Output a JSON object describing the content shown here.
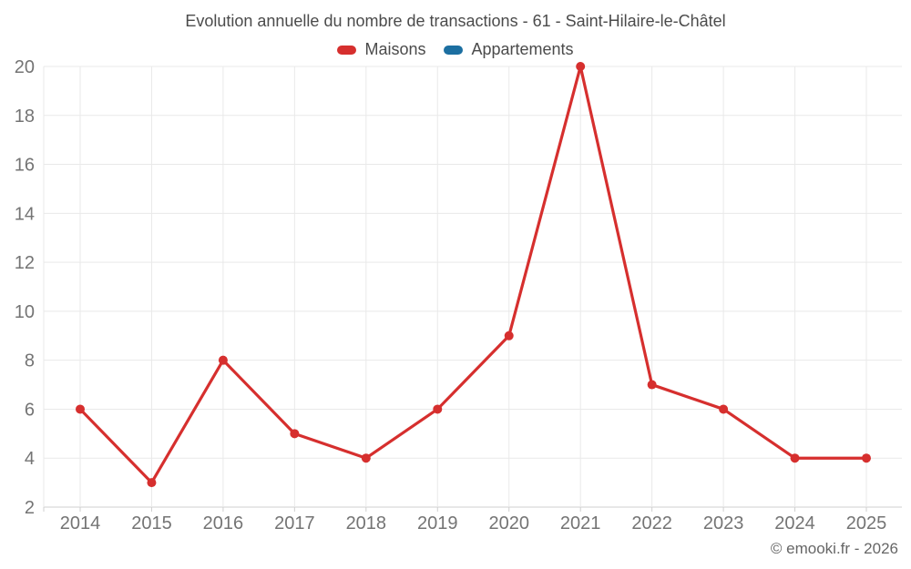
{
  "title": "Evolution annuelle du nombre de transactions - 61 - Saint-Hilaire-le-Châtel",
  "footer": "© emooki.fr - 2026",
  "legend": [
    {
      "label": "Maisons",
      "color": "#d62f2e"
    },
    {
      "label": "Appartements",
      "color": "#1c6fa1"
    }
  ],
  "colors": {
    "maisons": "#d62f2e",
    "appartements": "#1c6fa1",
    "gridline": "#e9e9e9",
    "axis_line": "#cfcfcf",
    "tick_text": "#747474",
    "title_text": "#4b4b4b",
    "footer_text": "#666666"
  },
  "chart_data": {
    "type": "line",
    "title": "Evolution annuelle du nombre de transactions - 61 - Saint-Hilaire-le-Châtel",
    "categories": [
      "2014",
      "2015",
      "2016",
      "2017",
      "2018",
      "2019",
      "2020",
      "2021",
      "2022",
      "2023",
      "2024",
      "2025"
    ],
    "series": [
      {
        "name": "Maisons",
        "color": "#d62f2e",
        "values": [
          6,
          3,
          8,
          5,
          4,
          6,
          9,
          20,
          7,
          6,
          4,
          4
        ]
      },
      {
        "name": "Appartements",
        "color": "#1c6fa1",
        "values": []
      }
    ],
    "xlabel": "",
    "ylabel": "",
    "ylim": [
      2,
      20
    ],
    "ytick_step": 2,
    "grid": true,
    "legend_position": "top"
  }
}
